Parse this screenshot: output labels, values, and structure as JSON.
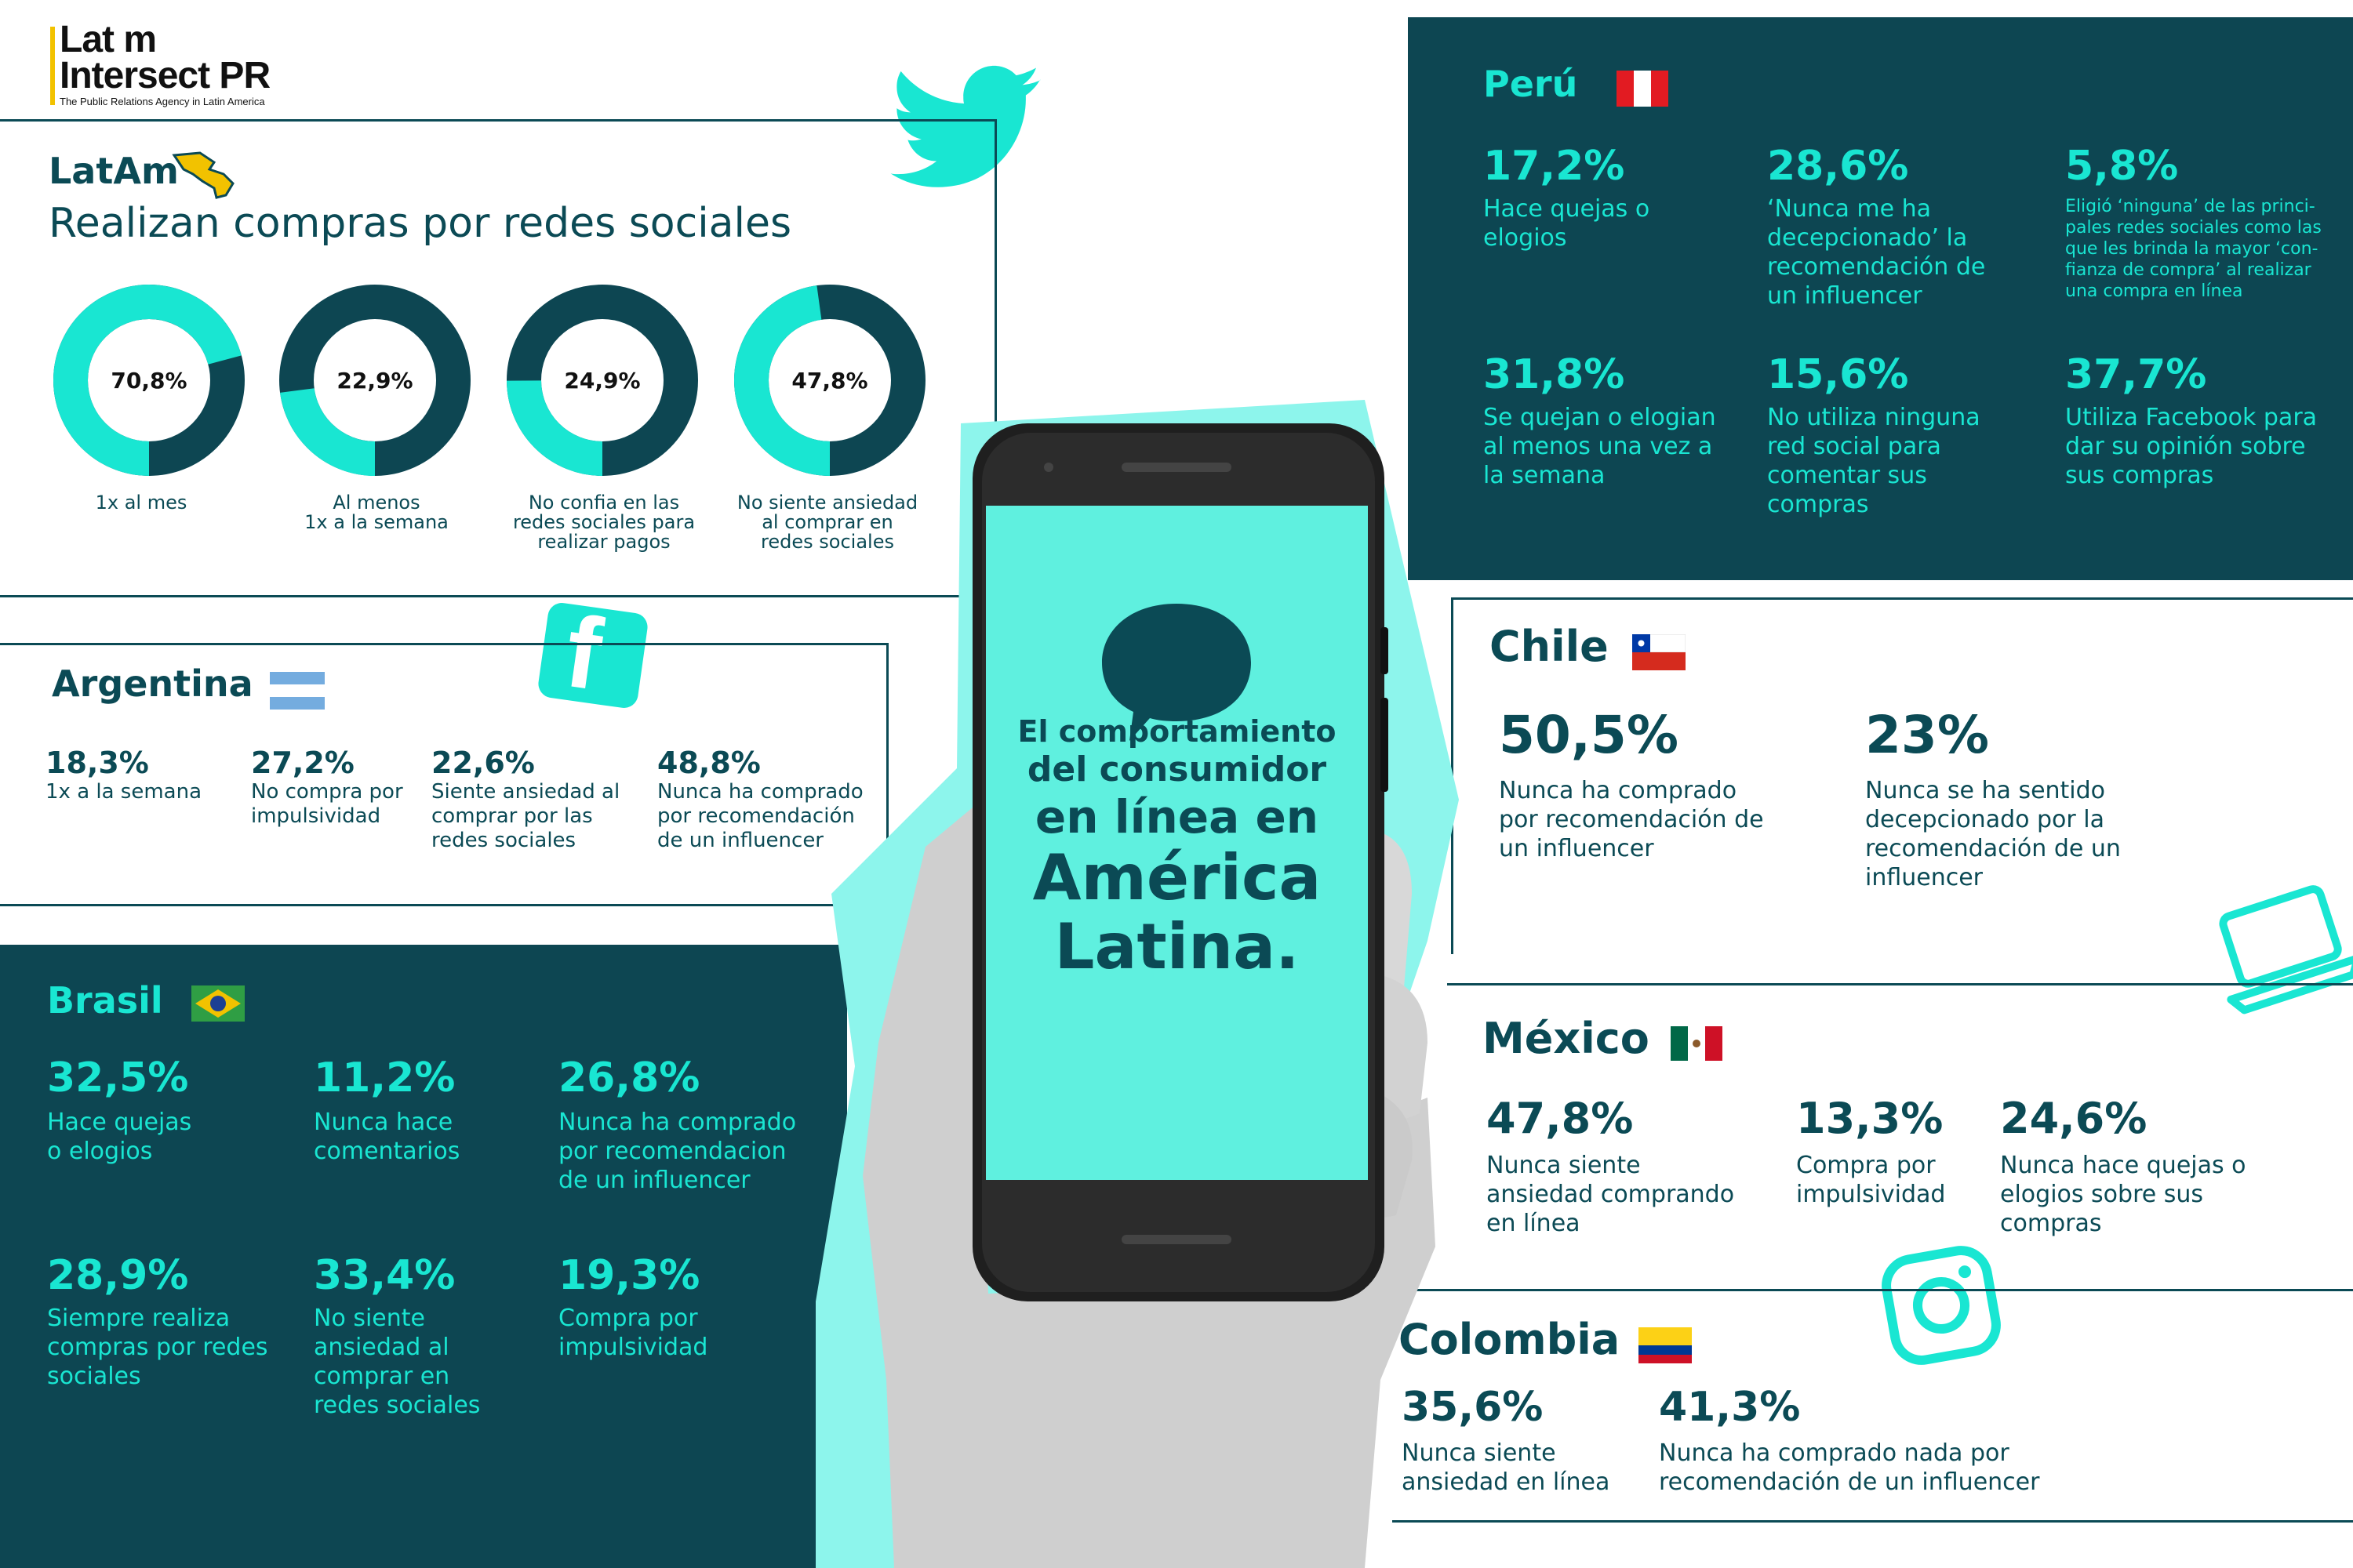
{
  "logo": {
    "line1": "Lat m",
    "line2": "Intersect PR",
    "tagline": "The Public Relations Agency in Latin America"
  },
  "latam": {
    "title": "LatAm",
    "subtitle": "Realizan compras por redes sociales",
    "donuts": [
      {
        "value": "70,8%",
        "caption1": "1x al mes",
        "caption2": "",
        "caption3": ""
      },
      {
        "value": "22,9%",
        "caption1": "Al menos",
        "caption2": "1x a la semana",
        "caption3": ""
      },
      {
        "value": "24,9%",
        "caption1": "No confia en las",
        "caption2": "redes sociales para",
        "caption3": "realizar pagos"
      },
      {
        "value": "47,8%",
        "caption1": "No siente ansiedad",
        "caption2": "al comprar en",
        "caption3": "redes sociales"
      }
    ]
  },
  "chart_data": {
    "type": "pie",
    "categories": [
      "1x al mes",
      "Al menos 1x a la semana",
      "No confia en las redes sociales para realizar pagos",
      "No siente ansiedad al comprar en redes sociales"
    ],
    "values": [
      70.8,
      22.9,
      24.9,
      47.8
    ],
    "title": "Realizan compras por redes sociales"
  },
  "argentina": {
    "title": "Argentina",
    "stats": [
      {
        "value": "18,3%",
        "l1": "1x a la semana",
        "l2": "",
        "l3": ""
      },
      {
        "value": "27,2%",
        "l1": "No compra por",
        "l2": "impulsividad",
        "l3": ""
      },
      {
        "value": "22,6%",
        "l1": "Siente ansiedad al",
        "l2": "comprar por las",
        "l3": "redes sociales"
      },
      {
        "value": "48,8%",
        "l1": "Nunca ha comprado",
        "l2": "por recomendación",
        "l3": "de un influencer"
      }
    ]
  },
  "brasil": {
    "title": "Brasil",
    "stats": [
      {
        "value": "32,5%",
        "l1": "Hace quejas",
        "l2": "o elogios",
        "l3": "",
        "l4": ""
      },
      {
        "value": "11,2%",
        "l1": "Nunca hace",
        "l2": "comentarios",
        "l3": "",
        "l4": ""
      },
      {
        "value": "26,8%",
        "l1": "Nunca ha comprado",
        "l2": "por recomendacion",
        "l3": "de un influencer",
        "l4": ""
      },
      {
        "value": "28,9%",
        "l1": "Siempre realiza",
        "l2": "compras por redes",
        "l3": "sociales",
        "l4": ""
      },
      {
        "value": "33,4%",
        "l1": "No siente",
        "l2": "ansiedad al",
        "l3": "comprar en",
        "l4": "redes sociales"
      },
      {
        "value": "19,3%",
        "l1": "Compra por",
        "l2": "impulsividad",
        "l3": "",
        "l4": ""
      }
    ]
  },
  "peru": {
    "title": "Perú",
    "stats": [
      {
        "value": "17,2%",
        "l1": "Hace quejas o",
        "l2": "elogios",
        "l3": "",
        "l4": ""
      },
      {
        "value": "28,6%",
        "l1": "‘Nunca me ha",
        "l2": "decepcionado’ la",
        "l3": "recomendación de",
        "l4": "un influencer"
      },
      {
        "value": "31,8%",
        "l1": "Se quejan o elogian",
        "l2": "al menos una vez a",
        "l3": "la semana",
        "l4": ""
      },
      {
        "value": "15,6%",
        "l1": "No utiliza ninguna",
        "l2": "red social para",
        "l3": "comentar sus",
        "l4": "compras"
      },
      {
        "value": "37,7%",
        "l1": "Utiliza Facebook para",
        "l2": "dar su opinión sobre",
        "l3": "sus compras",
        "l4": ""
      }
    ],
    "small": {
      "value": "5,8%",
      "l1": "Eligió ‘ninguna’ de las princi-",
      "l2": "pales redes sociales como las",
      "l3": "que les brinda la mayor ‘con-",
      "l4": "fianza de compra’ al realizar",
      "l5": "una compra en línea"
    }
  },
  "chile": {
    "title": "Chile",
    "stats": [
      {
        "value": "50,5%",
        "l1": "Nunca ha comprado",
        "l2": "por recomendación de",
        "l3": "un influencer",
        "l4": ""
      },
      {
        "value": "23%",
        "l1": "Nunca se ha sentido",
        "l2": "decepcionado por la",
        "l3": "recomendación de un",
        "l4": "influencer"
      }
    ]
  },
  "mexico": {
    "title": "México",
    "stats": [
      {
        "value": "47,8%",
        "l1": "Nunca siente",
        "l2": "ansiedad comprando",
        "l3": "en línea"
      },
      {
        "value": "13,3%",
        "l1": "Compra por",
        "l2": "impulsividad",
        "l3": ""
      },
      {
        "value": "24,6%",
        "l1": "Nunca hace quejas o",
        "l2": "elogios sobre sus",
        "l3": "compras"
      }
    ]
  },
  "colombia": {
    "title": "Colombia",
    "stats": [
      {
        "value": "35,6%",
        "l1": "Nunca siente",
        "l2": "ansiedad en línea"
      },
      {
        "value": "41,3%",
        "l1": "Nunca ha comprado nada por",
        "l2": "recomendación de un influencer"
      }
    ]
  },
  "phone": {
    "line1": "El comportamiento",
    "line2": "del consumidor",
    "line3": "en línea en",
    "line4": "América",
    "line5": "Latina."
  },
  "colors": {
    "dark": "#0d4652",
    "teal": "#19e6d2",
    "navy": "#0b4a55",
    "screen": "#5ff0df"
  },
  "icons": [
    "twitter-icon",
    "facebook-icon",
    "laptop-icon",
    "instagram-icon",
    "speech-bubble-icon",
    "latam-map-icon"
  ]
}
